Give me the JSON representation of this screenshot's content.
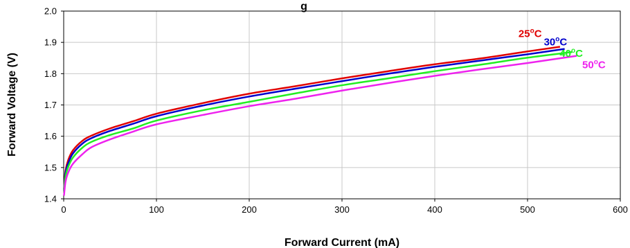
{
  "chart_data": {
    "type": "line",
    "title": "g",
    "xlabel": "Forward Current (mA)",
    "ylabel": "Forward Voltage (V)",
    "xlim": [
      0,
      600
    ],
    "ylim": [
      1.4,
      2.0
    ],
    "x_ticks": [
      "0",
      "100",
      "200",
      "300",
      "400",
      "500",
      "600"
    ],
    "y_ticks": [
      "1.4",
      "1.5",
      "1.6",
      "1.7",
      "1.8",
      "1.9",
      "2.0"
    ],
    "grid": true,
    "series": [
      {
        "name": "25",
        "unit": "C",
        "color": "#e00000",
        "points": [
          [
            0.3,
            1.43
          ],
          [
            2,
            1.49
          ],
          [
            5,
            1.525
          ],
          [
            10,
            1.555
          ],
          [
            20,
            1.585
          ],
          [
            30,
            1.602
          ],
          [
            50,
            1.625
          ],
          [
            75,
            1.648
          ],
          [
            100,
            1.672
          ],
          [
            150,
            1.706
          ],
          [
            200,
            1.736
          ],
          [
            250,
            1.76
          ],
          [
            300,
            1.785
          ],
          [
            350,
            1.808
          ],
          [
            400,
            1.83
          ],
          [
            450,
            1.849
          ],
          [
            500,
            1.871
          ],
          [
            535,
            1.886
          ]
        ]
      },
      {
        "name": "30",
        "unit": "C",
        "color": "#0000cc",
        "points": [
          [
            0.3,
            1.425
          ],
          [
            2,
            1.483
          ],
          [
            5,
            1.515
          ],
          [
            10,
            1.545
          ],
          [
            20,
            1.576
          ],
          [
            30,
            1.594
          ],
          [
            50,
            1.617
          ],
          [
            75,
            1.64
          ],
          [
            100,
            1.664
          ],
          [
            150,
            1.698
          ],
          [
            200,
            1.727
          ],
          [
            250,
            1.752
          ],
          [
            300,
            1.776
          ],
          [
            350,
            1.8
          ],
          [
            400,
            1.822
          ],
          [
            450,
            1.842
          ],
          [
            500,
            1.862
          ],
          [
            540,
            1.879
          ]
        ]
      },
      {
        "name": "40",
        "unit": "C",
        "color": "#22ee22",
        "points": [
          [
            0.3,
            1.42
          ],
          [
            2,
            1.472
          ],
          [
            5,
            1.503
          ],
          [
            10,
            1.532
          ],
          [
            20,
            1.563
          ],
          [
            30,
            1.582
          ],
          [
            50,
            1.604
          ],
          [
            75,
            1.625
          ],
          [
            100,
            1.65
          ],
          [
            150,
            1.683
          ],
          [
            200,
            1.71
          ],
          [
            250,
            1.737
          ],
          [
            300,
            1.763
          ],
          [
            350,
            1.785
          ],
          [
            400,
            1.808
          ],
          [
            450,
            1.829
          ],
          [
            500,
            1.851
          ],
          [
            548,
            1.869
          ]
        ]
      },
      {
        "name": "50",
        "unit": "C",
        "color": "#ee22ee",
        "points": [
          [
            0.3,
            1.41
          ],
          [
            2,
            1.455
          ],
          [
            5,
            1.485
          ],
          [
            10,
            1.512
          ],
          [
            20,
            1.542
          ],
          [
            30,
            1.565
          ],
          [
            50,
            1.59
          ],
          [
            75,
            1.615
          ],
          [
            100,
            1.638
          ],
          [
            150,
            1.668
          ],
          [
            200,
            1.696
          ],
          [
            250,
            1.72
          ],
          [
            300,
            1.746
          ],
          [
            350,
            1.77
          ],
          [
            400,
            1.793
          ],
          [
            450,
            1.814
          ],
          [
            500,
            1.834
          ],
          [
            553,
            1.857
          ]
        ]
      }
    ],
    "legend": "inline labels near line ends"
  }
}
